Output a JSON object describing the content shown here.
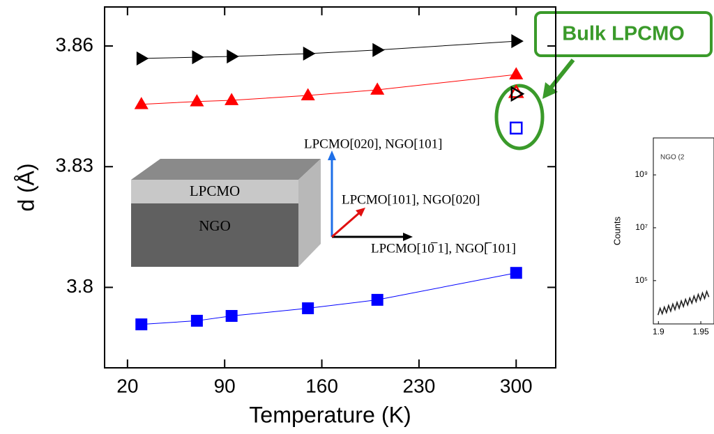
{
  "chart_data": [
    {
      "type": "line",
      "xlabel": "Temperature (K)",
      "ylabel": "d (Å)",
      "x": [
        30,
        70,
        95,
        150,
        200,
        300
      ],
      "xlim": [
        3.5,
        328.5
      ],
      "xticks": [
        20,
        90,
        160,
        230,
        300
      ],
      "ylim": [
        3.78,
        3.8697
      ],
      "yticks": [
        3.8,
        3.83,
        3.86
      ],
      "series": [
        {
          "color": "#000000",
          "marker": "triangle-right",
          "filled": true,
          "values": [
            3.8569,
            3.8572,
            3.8574,
            3.8581,
            3.859,
            3.8612
          ]
        },
        {
          "color": "#ff0000",
          "marker": "triangle-up",
          "filled": true,
          "values": [
            3.8455,
            3.8462,
            3.8465,
            3.8477,
            3.8491,
            3.8529
          ]
        },
        {
          "color": "#0000ff",
          "marker": "square",
          "filled": true,
          "values": [
            3.7908,
            3.7917,
            3.7929,
            3.7948,
            3.7969,
            3.8036
          ]
        },
        {
          "color": "#ff0000",
          "marker": "triangle-up",
          "filled": false,
          "x": [
            300
          ],
          "values": [
            3.8484
          ]
        },
        {
          "color": "#000000",
          "marker": "triangle-right",
          "filled": false,
          "x": [
            300
          ],
          "values": [
            3.8481
          ]
        },
        {
          "color": "#0000ff",
          "marker": "square",
          "filled": false,
          "x": [
            300
          ],
          "values": [
            3.8396
          ]
        }
      ],
      "annotations": {
        "bulk": "Bulk LPCMO",
        "axis_up": "LPCMO[020], NGO[101]",
        "axis_diag": "LPCMO[101], NGO[020]",
        "axis_right": "LPCMO[10̅ 1], NGO[̅ 101]",
        "layer_top": "LPCMO",
        "layer_bottom": "NGO"
      }
    },
    {
      "type": "line",
      "title": "NGO (2",
      "ylabel": "Counts",
      "log_y": true,
      "x": [
        1.8995,
        1.902,
        1.9045,
        1.907,
        1.9095,
        1.912,
        1.9145,
        1.917,
        1.9195,
        1.922,
        1.9245,
        1.927,
        1.9295,
        1.932,
        1.9345,
        1.937,
        1.9395,
        1.942,
        1.9445,
        1.947,
        1.9495,
        1.952,
        1.9545,
        1.957,
        1.9595
      ],
      "xlim": [
        1.894,
        1.9656
      ],
      "xticks": [
        1.9,
        1.95
      ],
      "ylim": [
        2300,
        25000000000
      ],
      "yticks": [
        {
          "value": 100000,
          "label": "10⁵"
        },
        {
          "value": 10000000,
          "label": "10⁷"
        },
        {
          "value": 1000000000,
          "label": "10⁹"
        }
      ],
      "series": [
        {
          "color": "#222222",
          "values": [
            5000,
            9000,
            5600,
            10000,
            6200,
            11500,
            7000,
            13000,
            8000,
            15000,
            9000,
            17000,
            10500,
            19500,
            12000,
            22000,
            14000,
            26000,
            16000,
            30000,
            18500,
            34000,
            21000,
            39000,
            24000
          ]
        }
      ]
    }
  ]
}
